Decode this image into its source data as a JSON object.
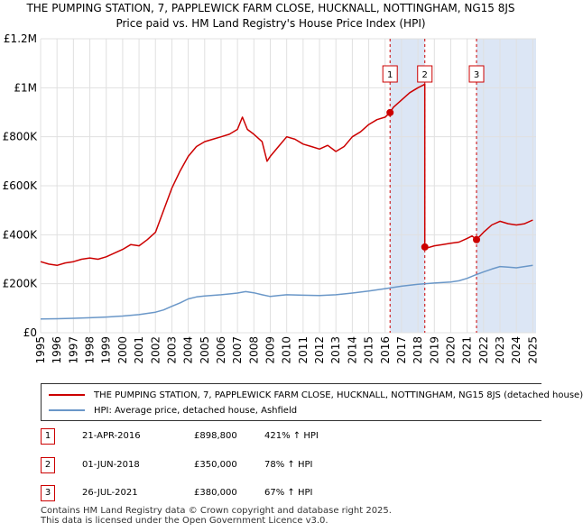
{
  "chart_data": {
    "type": "line",
    "title": "THE PUMPING STATION, 7, PAPPLEWICK FARM CLOSE, HUCKNALL, NOTTINGHAM, NG15 8JS",
    "subtitle": "Price paid vs. HM Land Registry's House Price Index (HPI)",
    "xlim": [
      1995,
      2025.2
    ],
    "ylim": [
      0,
      1200000
    ],
    "x_ticks": [
      "1995",
      "1996",
      "1997",
      "1998",
      "1999",
      "2000",
      "2001",
      "2002",
      "2003",
      "2004",
      "2005",
      "2006",
      "2007",
      "2008",
      "2009",
      "2010",
      "2011",
      "2012",
      "2013",
      "2014",
      "2015",
      "2016",
      "2017",
      "2018",
      "2019",
      "2020",
      "2021",
      "2022",
      "2023",
      "2024",
      "2025"
    ],
    "y_ticks": [
      {
        "value": 0,
        "label": "£0"
      },
      {
        "value": 200000,
        "label": "£200K"
      },
      {
        "value": 400000,
        "label": "£400K"
      },
      {
        "value": 600000,
        "label": "£600K"
      },
      {
        "value": 800000,
        "label": "£800K"
      },
      {
        "value": 1000000,
        "label": "£1M"
      },
      {
        "value": 1200000,
        "label": "£1.2M"
      }
    ],
    "series": [
      {
        "name": "THE PUMPING STATION, 7, PAPPLEWICK FARM CLOSE, HUCKNALL, NOTTINGHAM, NG15 8JS (detached house)",
        "color": "#cc0000",
        "x": [
          1995.0,
          1995.5,
          1996.0,
          1996.5,
          1997.0,
          1997.5,
          1998.0,
          1998.5,
          1999.0,
          1999.5,
          2000.0,
          2000.5,
          2001.0,
          2001.5,
          2002.0,
          2002.5,
          2003.0,
          2003.5,
          2004.0,
          2004.5,
          2005.0,
          2005.5,
          2006.0,
          2006.5,
          2007.0,
          2007.3,
          2007.6,
          2008.0,
          2008.5,
          2008.8,
          2009.0,
          2009.5,
          2010.0,
          2010.5,
          2011.0,
          2011.5,
          2012.0,
          2012.5,
          2013.0,
          2013.5,
          2014.0,
          2014.5,
          2015.0,
          2015.5,
          2016.0,
          2016.3,
          2016.5,
          2017.0,
          2017.5,
          2018.0,
          2018.3,
          2018.42,
          2018.42,
          2018.5,
          2019.0,
          2019.5,
          2020.0,
          2020.5,
          2021.0,
          2021.3,
          2021.57,
          2022.0,
          2022.5,
          2023.0,
          2023.5,
          2024.0,
          2024.5,
          2025.0
        ],
        "values": [
          290000,
          280000,
          275000,
          285000,
          290000,
          300000,
          305000,
          300000,
          310000,
          325000,
          340000,
          360000,
          355000,
          380000,
          410000,
          500000,
          590000,
          660000,
          720000,
          760000,
          780000,
          790000,
          800000,
          810000,
          830000,
          880000,
          830000,
          810000,
          780000,
          700000,
          720000,
          760000,
          800000,
          790000,
          770000,
          760000,
          750000,
          765000,
          740000,
          760000,
          800000,
          820000,
          850000,
          870000,
          880000,
          898800,
          920000,
          950000,
          980000,
          1000000,
          1010000,
          1015000,
          350000,
          345000,
          355000,
          360000,
          365000,
          370000,
          385000,
          395000,
          380000,
          410000,
          440000,
          455000,
          445000,
          440000,
          445000,
          460000
        ]
      },
      {
        "name": "HPI: Average price, detached house, Ashfield",
        "color": "#6a97c8",
        "x": [
          1995.0,
          1996.0,
          1997.0,
          1998.0,
          1999.0,
          2000.0,
          2001.0,
          2002.0,
          2002.5,
          2003.0,
          2003.5,
          2004.0,
          2004.5,
          2005.0,
          2006.0,
          2007.0,
          2007.5,
          2008.0,
          2008.5,
          2009.0,
          2009.5,
          2010.0,
          2011.0,
          2012.0,
          2013.0,
          2014.0,
          2015.0,
          2016.0,
          2017.0,
          2018.0,
          2019.0,
          2020.0,
          2020.5,
          2021.0,
          2021.5,
          2022.0,
          2022.5,
          2023.0,
          2023.5,
          2024.0,
          2024.5,
          2025.0
        ],
        "values": [
          56000,
          57000,
          59000,
          61000,
          64000,
          68000,
          74000,
          84000,
          93000,
          108000,
          122000,
          138000,
          146000,
          150000,
          155000,
          162000,
          168000,
          163000,
          155000,
          148000,
          152000,
          155000,
          153000,
          152000,
          155000,
          162000,
          170000,
          180000,
          190000,
          198000,
          203000,
          207000,
          212000,
          222000,
          236000,
          248000,
          260000,
          270000,
          268000,
          265000,
          270000,
          275000
        ]
      }
    ],
    "transactions": [
      {
        "label": "1",
        "x": 2016.3,
        "price": 898800,
        "date": "21-APR-2016",
        "price_text": "£898,800",
        "hpi_text": "421% ↑ HPI"
      },
      {
        "label": "2",
        "x": 2018.42,
        "price": 350000,
        "date": "01-JUN-2018",
        "price_text": "£350,000",
        "hpi_text": "78% ↑ HPI"
      },
      {
        "label": "3",
        "x": 2021.57,
        "price": 380000,
        "date": "26-JUL-2021",
        "price_text": "£380,000",
        "hpi_text": "67% ↑ HPI"
      }
    ],
    "shaded_ranges": [
      [
        2016.3,
        2018.42
      ],
      [
        2021.57,
        2025.2
      ]
    ],
    "colors": {
      "shade": "#dce6f5",
      "grid": "#e0e0e0",
      "vline": "#cc0000",
      "price": "#cc0000",
      "hpi": "#6a97c8"
    }
  },
  "legend": {
    "price_label": "THE PUMPING STATION, 7, PAPPLEWICK FARM CLOSE, HUCKNALL, NOTTINGHAM, NG15 8JS (detached house)",
    "hpi_label": "HPI: Average price, detached house, Ashfield"
  },
  "footer": {
    "line1": "Contains HM Land Registry data © Crown copyright and database right 2025.",
    "line2": "This data is licensed under the Open Government Licence v3.0."
  }
}
